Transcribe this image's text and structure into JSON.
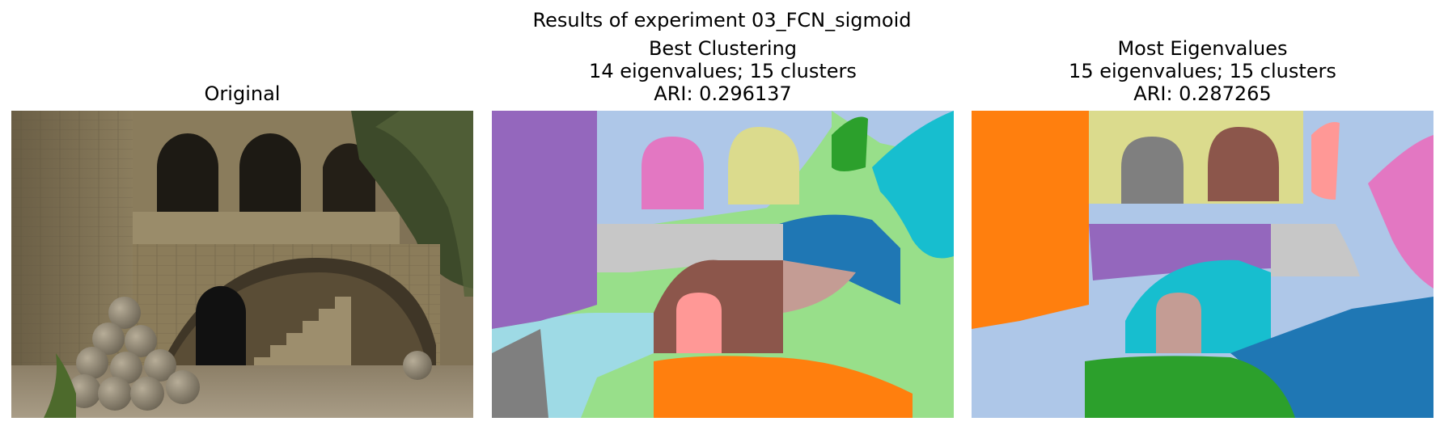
{
  "figure": {
    "suptitle": "Results of experiment 03_FCN_sigmoid"
  },
  "panels": {
    "original": {
      "title": "Original"
    },
    "best": {
      "title": "Best Clustering",
      "line2": "14 eigenvalues; 15 clusters",
      "line3": "ARI: 0.296137"
    },
    "most": {
      "title": "Most Eigenvalues",
      "line2": "15 eigenvalues; 15 clusters",
      "line3": "ARI: 0.287265"
    }
  },
  "chart_data": [
    {
      "type": "image",
      "title": "Original",
      "subject": "stone courtyard with arched loggia, staircase under a large arch, and a pyramid of stone cannonballs"
    },
    {
      "type": "heatmap",
      "title": "Best Clustering",
      "eigenvalues": 14,
      "clusters": 15,
      "ari": 0.296137,
      "colormap": "tab20"
    },
    {
      "type": "heatmap",
      "title": "Most Eigenvalues",
      "eigenvalues": 15,
      "clusters": 15,
      "ari": 0.287265,
      "colormap": "tab20"
    }
  ],
  "palette": {
    "purple": "#9467bd",
    "light_blue": "#aec7e8",
    "light_green": "#98df8a",
    "pink": "#e377c2",
    "khaki": "#dbdb8d",
    "green": "#2ca02c",
    "cyan": "#17becf",
    "blue": "#1f77b4",
    "silver": "#c7c7c7",
    "brown": "#8c564b",
    "rose": "#c49c94",
    "salmon": "#ff9896",
    "gray": "#7f7f7f",
    "pale_cyan": "#9edae5",
    "orange": "#ff7f0e"
  }
}
